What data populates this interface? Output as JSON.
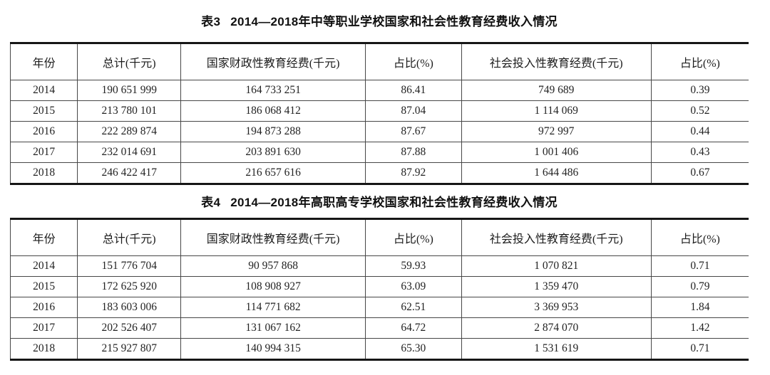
{
  "page": {
    "background_color": "#ffffff",
    "text_color": "#1f1f1f",
    "thick_rule_color": "#161616",
    "thin_rule_color": "#474747"
  },
  "tables": [
    {
      "title_prefix": "表3",
      "title_text": "2014—2018年中等职业学校国家和社会性教育经费收入情况",
      "columns": [
        "年份",
        "总计(千元)",
        "国家财政性教育经费(千元)",
        "占比(%)",
        "社会投入性教育经费(千元)",
        "占比(%)"
      ],
      "rows": [
        [
          "2014",
          "190 651 999",
          "164 733 251",
          "86.41",
          "749 689",
          "0.39"
        ],
        [
          "2015",
          "213 780 101",
          "186 068 412",
          "87.04",
          "1 114 069",
          "0.52"
        ],
        [
          "2016",
          "222 289 874",
          "194 873 288",
          "87.67",
          "972 997",
          "0.44"
        ],
        [
          "2017",
          "232 014 691",
          "203 891 630",
          "87.88",
          "1 001 406",
          "0.43"
        ],
        [
          "2018",
          "246 422 417",
          "216 657 616",
          "87.92",
          "1 644 486",
          "0.67"
        ]
      ]
    },
    {
      "title_prefix": "表4",
      "title_text": "2014—2018年高职高专学校国家和社会性教育经费收入情况",
      "columns": [
        "年份",
        "总计(千元)",
        "国家财政性教育经费(千元)",
        "占比(%)",
        "社会投入性教育经费(千元)",
        "占比(%)"
      ],
      "rows": [
        [
          "2014",
          "151 776 704",
          "90 957 868",
          "59.93",
          "1 070 821",
          "0.71"
        ],
        [
          "2015",
          "172 625 920",
          "108 908 927",
          "63.09",
          "1 359 470",
          "0.79"
        ],
        [
          "2016",
          "183 603 006",
          "114 771 682",
          "62.51",
          "3 369 953",
          "1.84"
        ],
        [
          "2017",
          "202 526 407",
          "131 067 162",
          "64.72",
          "2 874 070",
          "1.42"
        ],
        [
          "2018",
          "215 927 807",
          "140 994 315",
          "65.30",
          "1 531 619",
          "0.71"
        ]
      ]
    }
  ]
}
